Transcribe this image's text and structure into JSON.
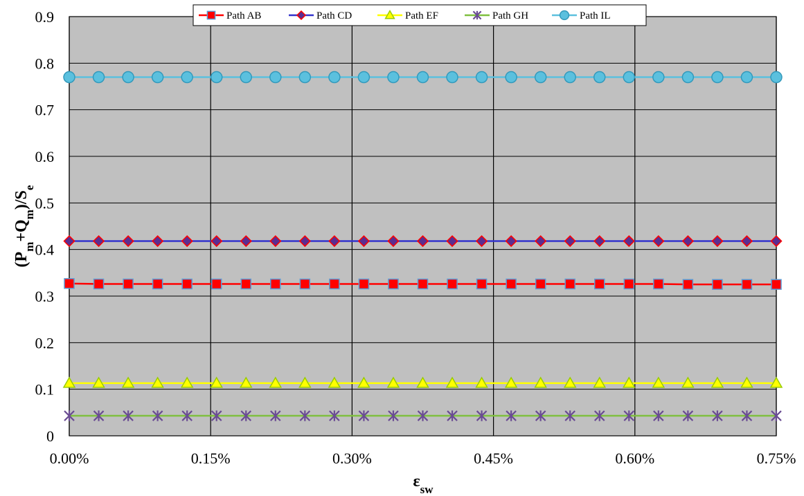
{
  "chart_data": {
    "type": "line",
    "x": [
      0.0,
      0.0003125,
      0.000625,
      0.0009375,
      0.00125,
      0.0015625,
      0.001875,
      0.0021875,
      0.0025,
      0.0028125,
      0.003125,
      0.0034375,
      0.00375,
      0.0040625,
      0.004375,
      0.0046875,
      0.005,
      0.0053125,
      0.005625,
      0.0059375,
      0.00625,
      0.0065625,
      0.006875,
      0.0071875,
      0.0075
    ],
    "xticks": [
      0.0,
      0.0015,
      0.003,
      0.0045,
      0.006,
      0.0075
    ],
    "xtick_labels": [
      "0.00%",
      "0.15%",
      "0.30%",
      "0.45%",
      "0.60%",
      "0.75%"
    ],
    "xlim": [
      0.0,
      0.0075
    ],
    "ylim": [
      0,
      0.9
    ],
    "yticks": [
      0,
      0.1,
      0.2,
      0.3,
      0.4,
      0.5,
      0.6,
      0.7,
      0.8,
      0.9
    ],
    "ytick_labels": [
      "0",
      "0.1",
      "0.2",
      "0.3",
      "0.4",
      "0.5",
      "0.6",
      "0.7",
      "0.8",
      "0.9"
    ],
    "xlabel_main": "ε",
    "xlabel_sub": "sw",
    "ylabel_parts": [
      {
        "text": "(P",
        "sub": false
      },
      {
        "text": "m",
        "sub": true
      },
      {
        "text": "+Q",
        "sub": false
      },
      {
        "text": "m",
        "sub": true
      },
      {
        "text": ")/S",
        "sub": false
      },
      {
        "text": "e",
        "sub": true
      }
    ],
    "grid": true,
    "legend_position": "top",
    "series": [
      {
        "name": "Path AB",
        "values": [
          0.327,
          0.326,
          0.326,
          0.326,
          0.326,
          0.326,
          0.326,
          0.326,
          0.326,
          0.326,
          0.326,
          0.326,
          0.326,
          0.326,
          0.326,
          0.326,
          0.326,
          0.326,
          0.326,
          0.326,
          0.326,
          0.325,
          0.325,
          0.325,
          0.325
        ],
        "line": "#ff0000",
        "fill": "#ff0000",
        "stroke": "#5b9bd5",
        "marker": "square"
      },
      {
        "name": "Path CD",
        "values": [
          0.418,
          0.418,
          0.418,
          0.418,
          0.418,
          0.418,
          0.418,
          0.418,
          0.418,
          0.418,
          0.418,
          0.418,
          0.418,
          0.418,
          0.418,
          0.418,
          0.418,
          0.418,
          0.418,
          0.418,
          0.418,
          0.418,
          0.418,
          0.418,
          0.418
        ],
        "line": "#3333cc",
        "fill": "#5a2d91",
        "stroke": "#ff0000",
        "marker": "diamond"
      },
      {
        "name": "Path EF",
        "values": [
          0.113,
          0.113,
          0.113,
          0.113,
          0.113,
          0.113,
          0.113,
          0.113,
          0.113,
          0.113,
          0.113,
          0.113,
          0.113,
          0.113,
          0.113,
          0.113,
          0.113,
          0.113,
          0.113,
          0.113,
          0.113,
          0.113,
          0.113,
          0.113,
          0.113
        ],
        "line": "#ffff00",
        "fill": "#ffff00",
        "stroke": "#99cc00",
        "marker": "triangle"
      },
      {
        "name": "Path GH",
        "values": [
          0.043,
          0.043,
          0.043,
          0.043,
          0.043,
          0.043,
          0.043,
          0.043,
          0.043,
          0.043,
          0.043,
          0.043,
          0.043,
          0.043,
          0.043,
          0.043,
          0.043,
          0.043,
          0.043,
          0.043,
          0.043,
          0.043,
          0.043,
          0.043,
          0.043
        ],
        "line": "#7fbf3f",
        "fill": "#7fbf3f",
        "stroke": "#6a4c93",
        "marker": "star"
      },
      {
        "name": "Path IL",
        "values": [
          0.77,
          0.77,
          0.77,
          0.77,
          0.77,
          0.77,
          0.77,
          0.77,
          0.77,
          0.77,
          0.77,
          0.77,
          0.77,
          0.77,
          0.77,
          0.77,
          0.77,
          0.77,
          0.77,
          0.77,
          0.77,
          0.77,
          0.77,
          0.77,
          0.77
        ],
        "line": "#5bc0de",
        "fill": "#5bc0de",
        "stroke": "#3399bb",
        "marker": "circle"
      }
    ],
    "colors": {
      "plot_background": "#c0c0c0",
      "grid": "#000000"
    }
  }
}
